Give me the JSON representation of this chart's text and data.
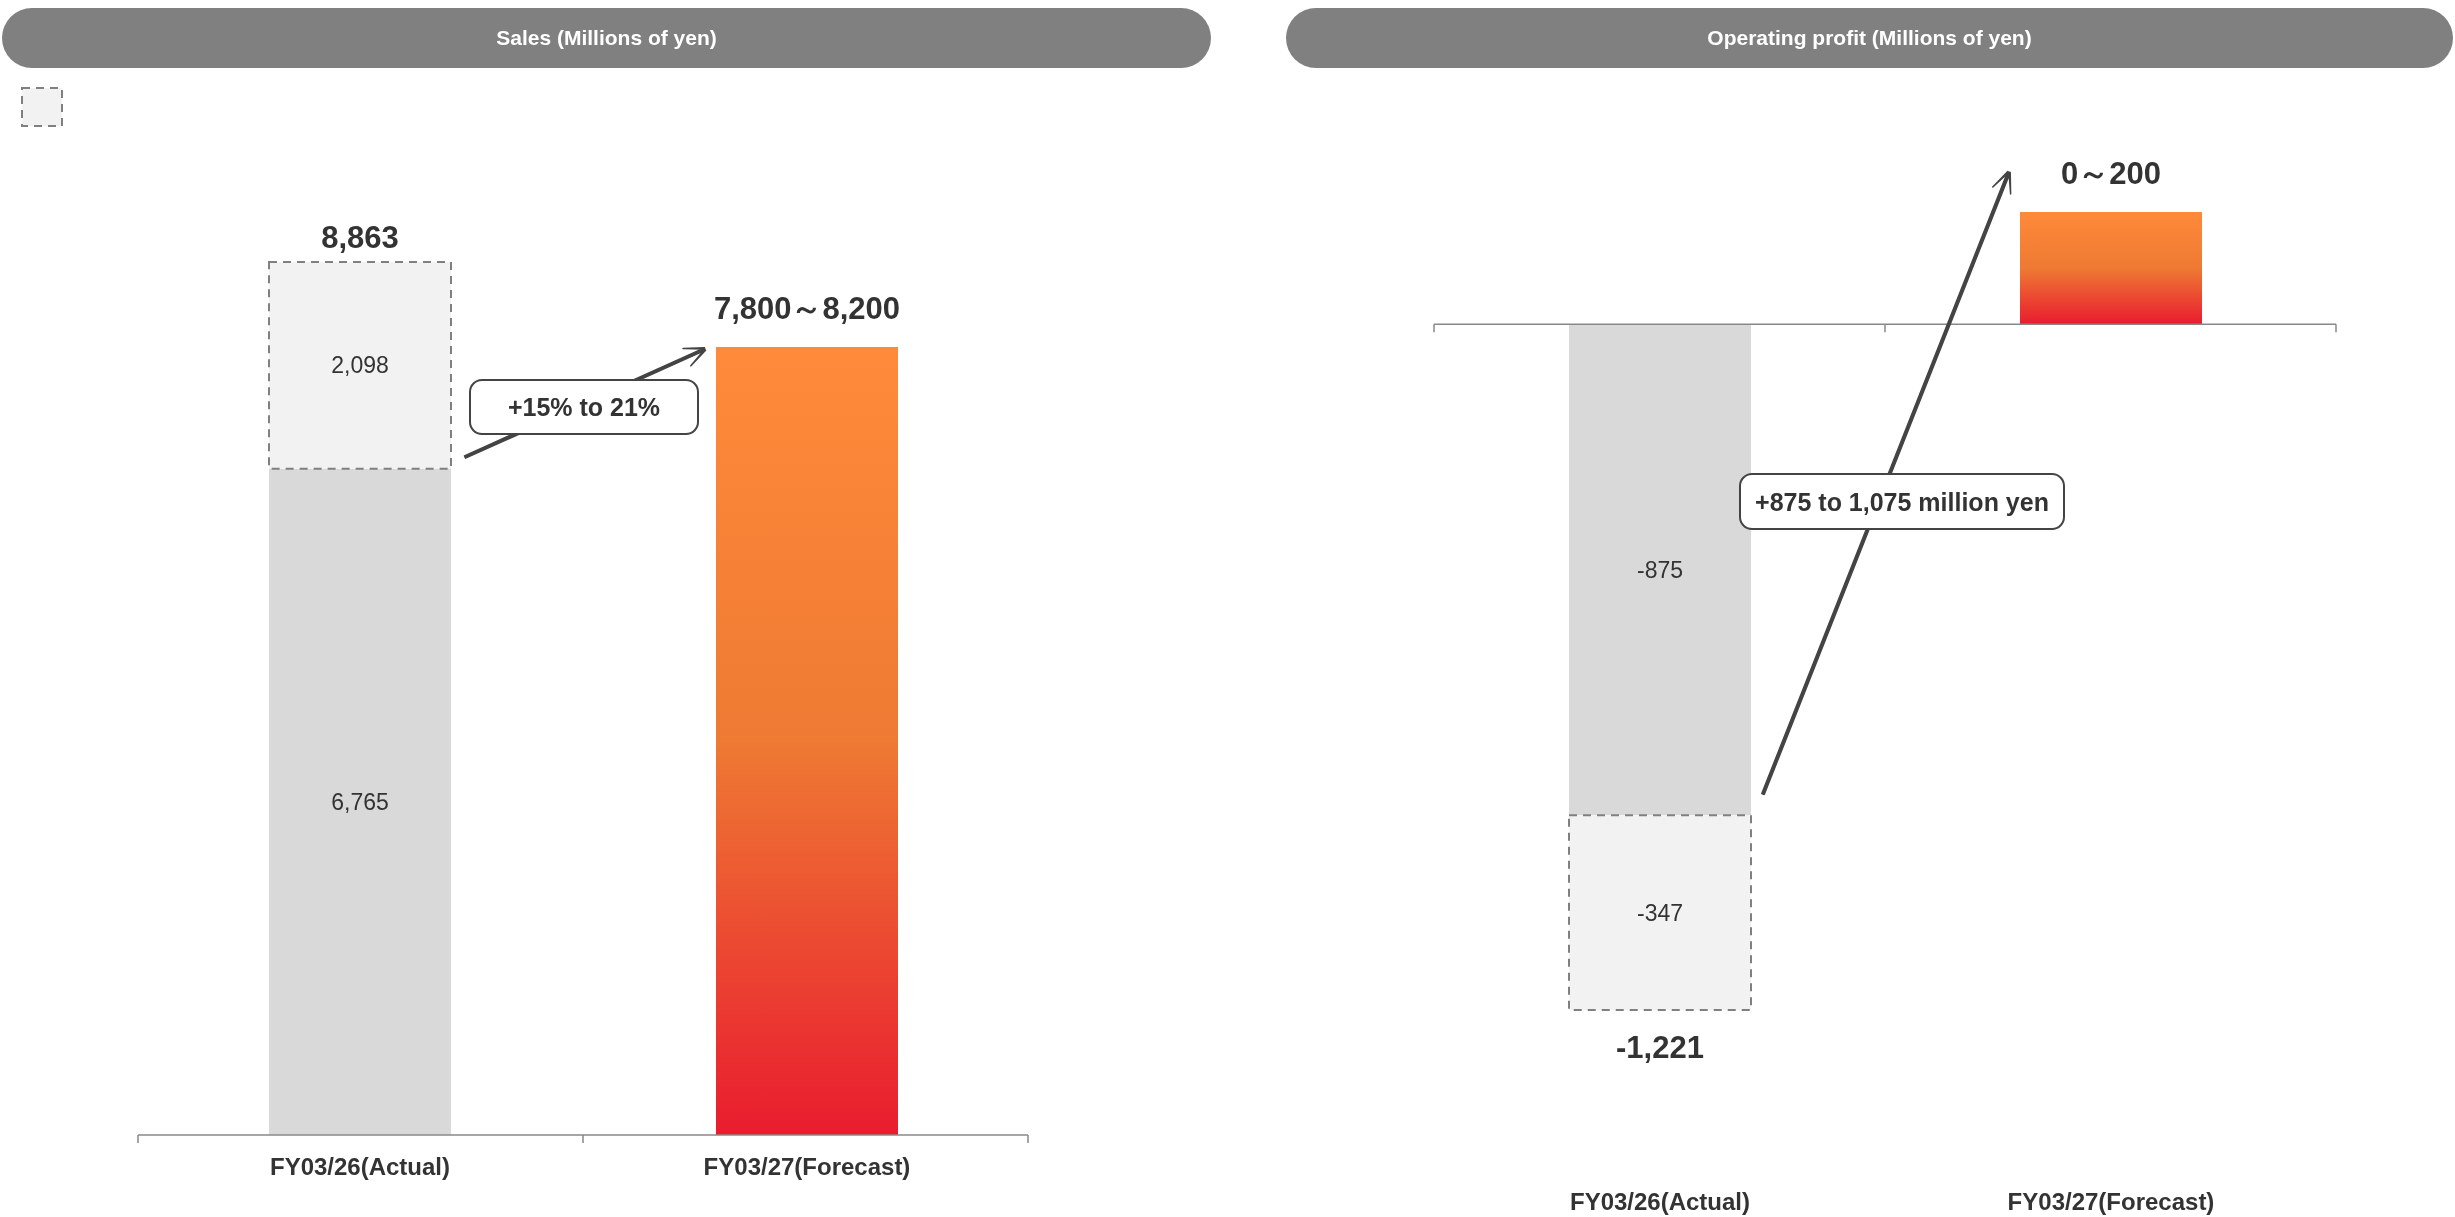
{
  "chart_data": [
    {
      "type": "bar",
      "title": "Sales (Millions of yen)",
      "stacked": true,
      "categories": [
        "FY03/26(Actual)",
        "FY03/27(Forecast)"
      ],
      "series": [
        {
          "color": "#d9d9d9",
          "values": [
            6765,
            null
          ],
          "value_labels": [
            "6,765",
            null
          ]
        },
        {
          "color": "#f2f2f2",
          "line_style": "dashed",
          "values": [
            2098,
            null
          ],
          "value_labels": [
            "2,098",
            null
          ]
        },
        {
          "color": "#ee7a33",
          "values": [
            null,
            8000
          ]
        }
      ],
      "totals": [
        "8,863",
        null
      ],
      "annotations": [
        "+15% to 21%",
        {
          "text": "7,800～8,200",
          "x": "FY03/27(Forecast)",
          "y": 8000
        }
      ]
    },
    {
      "type": "bar",
      "title": "Operating profit (Millions of yen)",
      "stacked": true,
      "categories": [
        "FY03/26(Actual)",
        "FY03/27(Forecast)"
      ],
      "series": [
        {
          "color": "#d9d9d9",
          "values": [
            -875,
            null
          ],
          "value_labels": [
            "-875",
            null
          ]
        },
        {
          "color": "#f2f2f2",
          "line_style": "dashed",
          "values": [
            -347,
            null
          ],
          "value_labels": [
            "-347",
            null
          ]
        },
        {
          "color": "#ee7a33",
          "values": [
            null,
            200
          ]
        }
      ],
      "totals": [
        "-1,221",
        null
      ],
      "annotations": [
        "+875 to 1,075 million yen",
        {
          "text": "0～200",
          "x": "FY03/27(Forecast)",
          "y": 200
        }
      ]
    }
  ]
}
